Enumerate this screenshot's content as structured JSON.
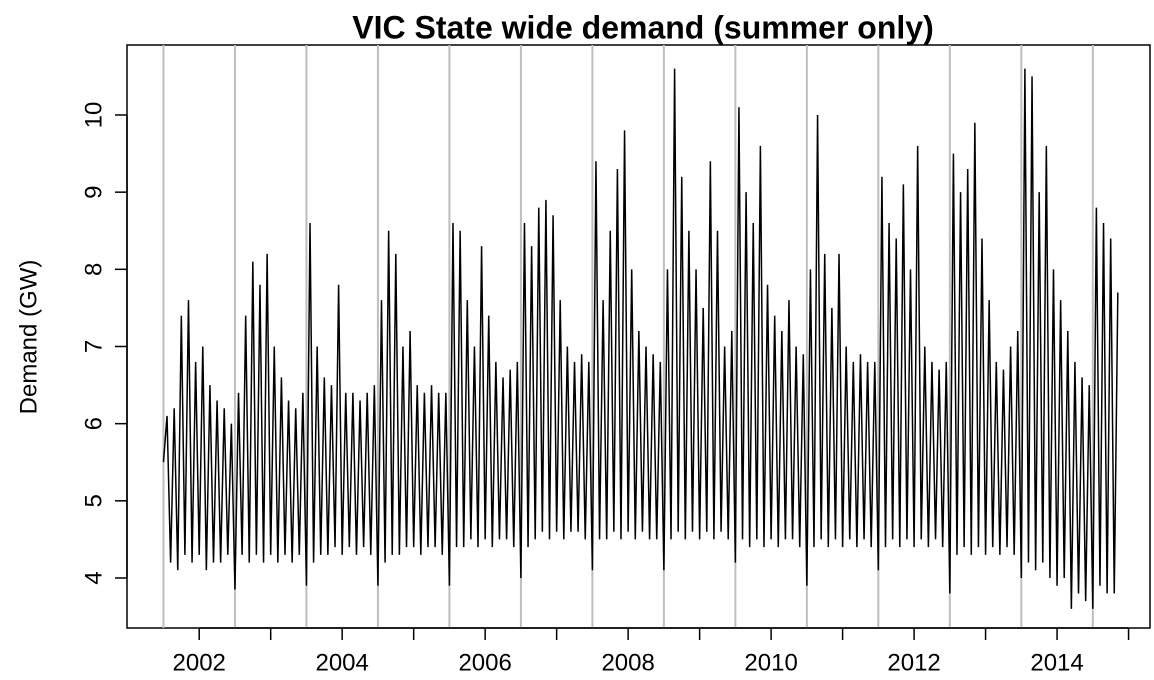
{
  "chart_data": {
    "type": "line",
    "title": "VIC State wide demand (summer only)",
    "y_label": "Demand (GW)",
    "xlim": [
      2000.99,
      2015.3
    ],
    "xticks": [
      2002,
      2004,
      2006,
      2008,
      2010,
      2012,
      2014
    ],
    "xticks_minor": [
      2003,
      2005,
      2007,
      2009,
      2011,
      2013,
      2015
    ],
    "ylim": [
      3.352,
      10.907
    ],
    "yticks": [
      4,
      5,
      6,
      7,
      8,
      9,
      10
    ],
    "vlines": [
      2001.5,
      2002.5,
      2003.5,
      2004.5,
      2005.5,
      2006.5,
      2007.5,
      2008.5,
      2009.5,
      2010.5,
      2011.5,
      2012.5,
      2013.5,
      2014.5
    ],
    "vline_color": "#bebebe",
    "series": [
      {
        "color": "#000000",
        "x": [
          2001.5,
          2001.55,
          2001.6,
          2001.65,
          2001.7,
          2001.75,
          2001.8,
          2001.85,
          2001.9,
          2001.95,
          2002,
          2002.05,
          2002.1,
          2002.15,
          2002.2,
          2002.25,
          2002.3,
          2002.35,
          2002.4,
          2002.45,
          2002.5,
          2002.55,
          2002.6,
          2002.65,
          2002.7,
          2002.75,
          2002.8,
          2002.85,
          2002.9,
          2002.95,
          2003,
          2003.05,
          2003.1,
          2003.15,
          2003.2,
          2003.25,
          2003.3,
          2003.35,
          2003.4,
          2003.45,
          2003.5,
          2003.55,
          2003.6,
          2003.65,
          2003.7,
          2003.75,
          2003.8,
          2003.85,
          2003.9,
          2003.95,
          2004,
          2004.05,
          2004.1,
          2004.15,
          2004.2,
          2004.25,
          2004.3,
          2004.35,
          2004.4,
          2004.45,
          2004.5,
          2004.55,
          2004.6,
          2004.65,
          2004.7,
          2004.75,
          2004.8,
          2004.85,
          2004.9,
          2004.95,
          2005,
          2005.05,
          2005.1,
          2005.15,
          2005.2,
          2005.25,
          2005.3,
          2005.35,
          2005.4,
          2005.45,
          2005.5,
          2005.55,
          2005.6,
          2005.65,
          2005.7,
          2005.75,
          2005.8,
          2005.85,
          2005.9,
          2005.95,
          2006,
          2006.05,
          2006.1,
          2006.15,
          2006.2,
          2006.25,
          2006.3,
          2006.35,
          2006.4,
          2006.45,
          2006.5,
          2006.55,
          2006.6,
          2006.65,
          2006.7,
          2006.75,
          2006.8,
          2006.85,
          2006.9,
          2006.95,
          2007,
          2007.05,
          2007.1,
          2007.15,
          2007.2,
          2007.25,
          2007.3,
          2007.35,
          2007.4,
          2007.45,
          2007.5,
          2007.55,
          2007.6,
          2007.65,
          2007.7,
          2007.75,
          2007.8,
          2007.85,
          2007.9,
          2007.95,
          2008,
          2008.05,
          2008.1,
          2008.15,
          2008.2,
          2008.25,
          2008.3,
          2008.35,
          2008.4,
          2008.45,
          2008.5,
          2008.55,
          2008.6,
          2008.65,
          2008.7,
          2008.75,
          2008.8,
          2008.85,
          2008.9,
          2008.95,
          2009,
          2009.05,
          2009.1,
          2009.15,
          2009.2,
          2009.25,
          2009.3,
          2009.35,
          2009.4,
          2009.45,
          2009.5,
          2009.55,
          2009.6,
          2009.65,
          2009.7,
          2009.75,
          2009.8,
          2009.85,
          2009.9,
          2009.95,
          2010,
          2010.05,
          2010.1,
          2010.15,
          2010.2,
          2010.25,
          2010.3,
          2010.35,
          2010.4,
          2010.45,
          2010.5,
          2010.55,
          2010.6,
          2010.65,
          2010.7,
          2010.75,
          2010.8,
          2010.85,
          2010.9,
          2010.95,
          2011,
          2011.05,
          2011.1,
          2011.15,
          2011.2,
          2011.25,
          2011.3,
          2011.35,
          2011.4,
          2011.45,
          2011.5,
          2011.55,
          2011.6,
          2011.65,
          2011.7,
          2011.75,
          2011.8,
          2011.85,
          2011.9,
          2011.95,
          2012,
          2012.05,
          2012.1,
          2012.15,
          2012.2,
          2012.25,
          2012.3,
          2012.35,
          2012.4,
          2012.45,
          2012.5,
          2012.55,
          2012.6,
          2012.65,
          2012.7,
          2012.75,
          2012.8,
          2012.85,
          2012.9,
          2012.95,
          2013,
          2013.05,
          2013.1,
          2013.15,
          2013.2,
          2013.25,
          2013.3,
          2013.35,
          2013.4,
          2013.45,
          2013.5,
          2013.55,
          2013.6,
          2013.65,
          2013.7,
          2013.75,
          2013.8,
          2013.85,
          2013.9,
          2013.95,
          2014,
          2014.05,
          2014.1,
          2014.15,
          2014.2,
          2014.25,
          2014.3,
          2014.35,
          2014.4,
          2014.45,
          2014.5,
          2014.55,
          2014.6,
          2014.65,
          2014.7,
          2014.75,
          2014.8,
          2014.85
        ],
        "values": [
          5.5,
          6.1,
          4.2,
          6.2,
          4.1,
          7.4,
          4.3,
          7.6,
          4.2,
          6.8,
          4.3,
          7.0,
          4.1,
          6.5,
          4.2,
          6.3,
          4.2,
          6.2,
          4.3,
          6.0,
          3.85,
          6.4,
          4.3,
          7.4,
          4.2,
          8.1,
          4.3,
          7.8,
          4.2,
          8.2,
          4.3,
          7.0,
          4.2,
          6.6,
          4.3,
          6.3,
          4.2,
          6.2,
          4.3,
          6.4,
          3.9,
          8.6,
          4.2,
          7.0,
          4.3,
          6.6,
          4.3,
          6.5,
          4.4,
          7.8,
          4.3,
          6.4,
          4.4,
          6.4,
          4.3,
          6.3,
          4.4,
          6.4,
          4.3,
          6.5,
          3.9,
          7.6,
          4.2,
          8.5,
          4.3,
          8.2,
          4.3,
          7.0,
          4.4,
          7.2,
          4.4,
          6.5,
          4.3,
          6.4,
          4.4,
          6.5,
          4.4,
          6.4,
          4.3,
          6.4,
          3.9,
          8.6,
          4.4,
          8.5,
          4.4,
          7.6,
          4.5,
          7.0,
          4.4,
          8.3,
          4.5,
          7.4,
          4.4,
          6.8,
          4.5,
          6.6,
          4.5,
          6.7,
          4.4,
          6.8,
          4.0,
          8.6,
          4.4,
          8.3,
          4.5,
          8.8,
          4.6,
          8.9,
          4.5,
          8.7,
          4.6,
          7.6,
          4.5,
          7.0,
          4.6,
          6.8,
          4.6,
          6.9,
          4.5,
          6.8,
          4.1,
          9.4,
          4.5,
          7.6,
          4.5,
          8.5,
          4.6,
          9.3,
          4.5,
          9.8,
          4.6,
          8.0,
          4.5,
          7.2,
          4.6,
          7.0,
          4.5,
          6.9,
          4.5,
          6.8,
          4.1,
          8.0,
          4.5,
          10.6,
          4.6,
          9.2,
          4.5,
          8.5,
          4.6,
          8.0,
          4.5,
          7.5,
          4.6,
          9.4,
          4.5,
          8.5,
          4.6,
          7.0,
          4.5,
          7.2,
          4.2,
          10.1,
          4.5,
          9.0,
          4.4,
          8.6,
          4.5,
          9.6,
          4.4,
          7.8,
          4.5,
          7.4,
          4.4,
          7.2,
          4.5,
          7.6,
          4.5,
          7.0,
          4.4,
          6.9,
          3.9,
          8.0,
          4.4,
          10.0,
          4.5,
          8.2,
          4.4,
          7.5,
          4.5,
          8.2,
          4.4,
          7.0,
          4.5,
          6.8,
          4.4,
          6.9,
          4.5,
          6.8,
          4.4,
          6.8,
          4.1,
          9.2,
          4.4,
          8.6,
          4.5,
          8.4,
          4.4,
          9.1,
          4.5,
          8.0,
          4.4,
          9.6,
          4.5,
          7.0,
          4.4,
          6.8,
          4.5,
          6.7,
          4.4,
          6.8,
          3.8,
          9.5,
          4.3,
          9.0,
          4.4,
          9.3,
          4.3,
          9.9,
          4.4,
          8.4,
          4.3,
          7.6,
          4.4,
          6.8,
          4.3,
          6.7,
          4.4,
          7.0,
          4.3,
          7.2,
          4.0,
          10.6,
          4.2,
          10.5,
          4.1,
          9.0,
          4.2,
          9.6,
          4.0,
          8.0,
          3.9,
          7.6,
          4.0,
          7.2,
          3.6,
          6.8,
          3.8,
          6.6,
          3.7,
          6.5,
          3.6,
          8.8,
          3.9,
          8.6,
          3.8,
          8.4,
          3.8,
          7.7
        ]
      }
    ]
  }
}
